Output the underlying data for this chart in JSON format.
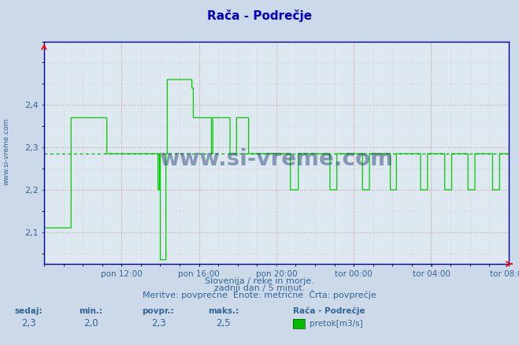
{
  "title": "Rača - Podrečje",
  "title_color": "#0000cc",
  "bg_color": "#ccd9e8",
  "plot_bg_color": "#dde8f0",
  "grid_color_major": "#cc9999",
  "grid_color_minor": "#ddbbbb",
  "line_color": "#00cc00",
  "avg_line_color": "#00aa00",
  "avg_value": 2.285,
  "ylim": [
    2.025,
    2.55
  ],
  "yticks": [
    2.1,
    2.2,
    2.3,
    2.4
  ],
  "axis_color": "#0000aa",
  "tick_color": "#336699",
  "footer_line1": "Slovenija / reke in morje.",
  "footer_line2": "zadnji dan / 5 minut.",
  "footer_line3": "Meritve: povprečne  Enote: metrične  Črta: povprečje",
  "footer_color": "#336699",
  "stat_labels": [
    "sedaj:",
    "min.:",
    "povpr.:",
    "maks.:"
  ],
  "stat_values": [
    "2,3",
    "2,0",
    "2,3",
    "2,5"
  ],
  "legend_title": "Rača - Podrečje",
  "legend_label": "pretok[m3/s]",
  "legend_color": "#00bb00",
  "watermark": "www.si-vreme.com",
  "watermark_color": "#1a3a6c",
  "side_text": "www.si-vreme.com",
  "xtick_labels": [
    "pon 12:00",
    "pon 16:00",
    "pon 20:00",
    "tor 00:00",
    "tor 04:00",
    "tor 08:00"
  ],
  "xtick_positions": [
    0.1667,
    0.3333,
    0.5,
    0.6667,
    0.8333,
    1.0
  ]
}
